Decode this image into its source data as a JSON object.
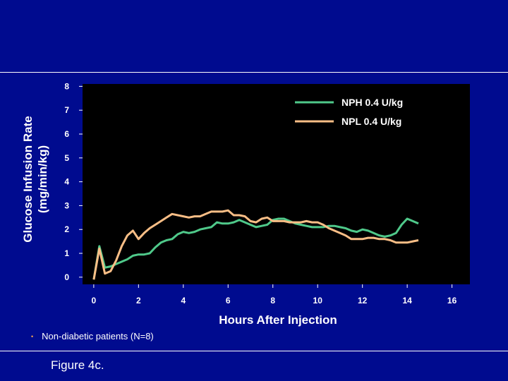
{
  "slide": {
    "note_bullet": "•",
    "note": "Non-diabetic patients (N=8)",
    "caption": "Figure 4c."
  },
  "colors": {
    "background": "#000b8f",
    "plot_background": "#000000",
    "NPH": "#4fc98a",
    "NPL": "#f9be86"
  },
  "chart_data": {
    "type": "line",
    "xlabel": "Hours After Injection",
    "ylabel_lines": [
      "Glucose Infusion Rate",
      "(mg/min/kg)"
    ],
    "xlim": [
      -0.5,
      16.8
    ],
    "ylim": [
      -0.3,
      8.1
    ],
    "xticks": [
      0,
      2,
      4,
      6,
      8,
      10,
      12,
      14,
      16
    ],
    "yticks": [
      0,
      1,
      2,
      3,
      4,
      5,
      6,
      7,
      8
    ],
    "grid": false,
    "legend_position": "top-right",
    "series": [
      {
        "name": "NPH 0.4 U/kg",
        "color": "#4fc98a",
        "x": [
          0,
          0.25,
          0.5,
          0.75,
          1,
          1.25,
          1.5,
          1.75,
          2,
          2.25,
          2.5,
          2.75,
          3,
          3.25,
          3.5,
          3.75,
          4,
          4.25,
          4.5,
          4.75,
          5,
          5.25,
          5.5,
          5.75,
          6,
          6.25,
          6.5,
          6.75,
          7,
          7.25,
          7.5,
          7.75,
          8,
          8.25,
          8.5,
          8.75,
          9,
          9.25,
          9.5,
          9.75,
          10,
          10.25,
          10.5,
          10.75,
          11,
          11.25,
          11.5,
          11.75,
          12,
          12.25,
          12.5,
          12.75,
          13,
          13.25,
          13.5,
          13.75,
          14,
          14.25,
          14.5
        ],
        "y": [
          -0.1,
          1.3,
          0.4,
          0.45,
          0.55,
          0.65,
          0.75,
          0.9,
          0.95,
          0.95,
          1.0,
          1.25,
          1.45,
          1.55,
          1.6,
          1.8,
          1.9,
          1.85,
          1.9,
          2.0,
          2.05,
          2.1,
          2.3,
          2.25,
          2.25,
          2.3,
          2.4,
          2.3,
          2.2,
          2.1,
          2.15,
          2.2,
          2.4,
          2.45,
          2.45,
          2.35,
          2.25,
          2.2,
          2.15,
          2.1,
          2.1,
          2.1,
          2.15,
          2.15,
          2.1,
          2.05,
          1.95,
          1.9,
          2.0,
          1.95,
          1.85,
          1.75,
          1.7,
          1.75,
          1.85,
          2.2,
          2.45,
          2.35,
          2.25
        ]
      },
      {
        "name": "NPL 0.4 U/kg",
        "color": "#f9be86",
        "x": [
          0,
          0.25,
          0.5,
          0.75,
          1,
          1.25,
          1.5,
          1.75,
          2,
          2.25,
          2.5,
          2.75,
          3,
          3.25,
          3.5,
          3.75,
          4,
          4.25,
          4.5,
          4.75,
          5,
          5.25,
          5.5,
          5.75,
          6,
          6.25,
          6.5,
          6.75,
          7,
          7.25,
          7.5,
          7.75,
          8,
          8.25,
          8.5,
          8.75,
          9,
          9.25,
          9.5,
          9.75,
          10,
          10.25,
          10.5,
          10.75,
          11,
          11.25,
          11.5,
          11.75,
          12,
          12.25,
          12.5,
          12.75,
          13,
          13.25,
          13.5,
          13.75,
          14,
          14.25,
          14.5
        ],
        "y": [
          -0.1,
          1.2,
          0.15,
          0.25,
          0.7,
          1.3,
          1.75,
          1.95,
          1.6,
          1.85,
          2.05,
          2.2,
          2.35,
          2.5,
          2.65,
          2.6,
          2.55,
          2.5,
          2.55,
          2.55,
          2.65,
          2.75,
          2.75,
          2.75,
          2.8,
          2.6,
          2.6,
          2.55,
          2.35,
          2.3,
          2.45,
          2.5,
          2.35,
          2.35,
          2.35,
          2.3,
          2.3,
          2.3,
          2.35,
          2.3,
          2.3,
          2.2,
          2.05,
          1.95,
          1.85,
          1.75,
          1.6,
          1.6,
          1.6,
          1.65,
          1.65,
          1.6,
          1.6,
          1.55,
          1.45,
          1.45,
          1.45,
          1.5,
          1.55
        ]
      }
    ]
  }
}
